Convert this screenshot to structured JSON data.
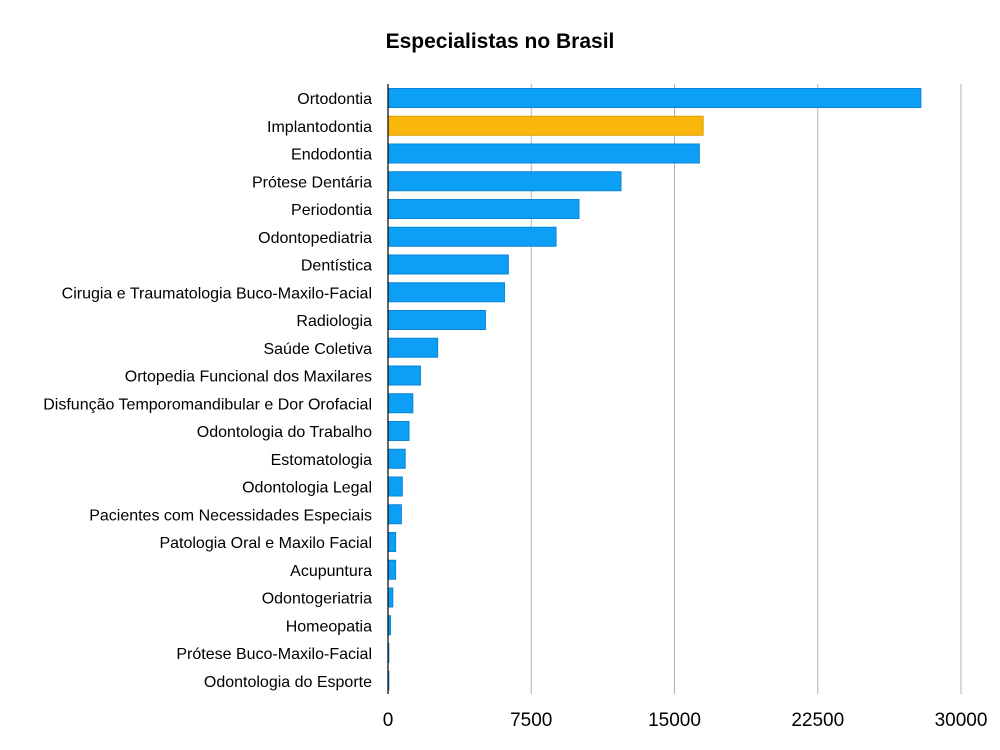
{
  "chart_data": {
    "type": "bar",
    "orientation": "horizontal",
    "title": "Especialistas no Brasil",
    "xlabel": "",
    "ylabel": "",
    "xlim": [
      0,
      30000
    ],
    "xticks": [
      0,
      7500,
      15000,
      22500,
      30000
    ],
    "xtick_labels": [
      "0",
      "7500",
      "15000",
      "22500",
      "30000"
    ],
    "grid": "vertical",
    "colors": {
      "default": "#0d9ef5",
      "highlight": "#f8b70a",
      "default_edge": "#0a86d6",
      "highlight_edge": "#d99d00"
    },
    "highlight_index": 1,
    "categories": [
      "Ortodontia",
      "Implantodontia",
      "Endodontia",
      "Prótese Dentária",
      "Periodontia",
      "Odontopediatria",
      "Dentística",
      "Cirugia e Traumatologia Buco-Maxilo-Facial",
      "Radiologia",
      "Saúde Coletiva",
      "Ortopedia Funcional dos Maxilares",
      "Disfunção Temporomandibular e Dor Orofacial",
      "Odontologia do Trabalho",
      "Estomatologia",
      "Odontologia Legal",
      "Pacientes com Necessidades Especiais",
      "Patologia Oral e Maxilo Facial",
      "Acupuntura",
      "Odontogeriatria",
      "Homeopatia",
      "Prótese Buco-Maxilo-Facial",
      "Odontologia do Esporte"
    ],
    "values": [
      27900,
      16500,
      16300,
      12200,
      10000,
      8800,
      6300,
      6100,
      5100,
      2600,
      1700,
      1300,
      1100,
      900,
      750,
      700,
      400,
      400,
      250,
      130,
      40,
      20
    ]
  }
}
